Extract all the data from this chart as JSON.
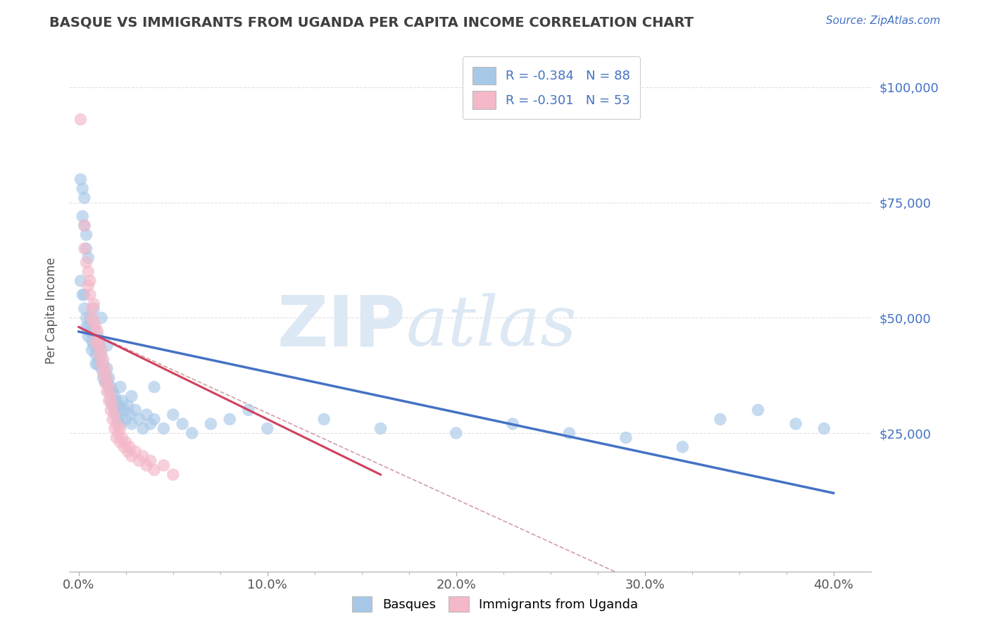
{
  "title": "BASQUE VS IMMIGRANTS FROM UGANDA PER CAPITA INCOME CORRELATION CHART",
  "source": "Source: ZipAtlas.com",
  "ylabel": "Per Capita Income",
  "xlabel_ticks": [
    "0.0%",
    "10.0%",
    "20.0%",
    "30.0%",
    "40.0%"
  ],
  "xlabel_vals": [
    0.0,
    0.1,
    0.2,
    0.3,
    0.4
  ],
  "ylabel_ticks": [
    "$100,000",
    "$75,000",
    "$50,000",
    "$25,000"
  ],
  "ylabel_vals": [
    100000,
    75000,
    50000,
    25000
  ],
  "ylim": [
    -5000,
    108000
  ],
  "xlim": [
    -0.005,
    0.42
  ],
  "legend_label1": "Basques",
  "legend_label2": "Immigrants from Uganda",
  "R1": -0.384,
  "N1": 88,
  "R2": -0.301,
  "N2": 53,
  "color_blue": "#a8c8e8",
  "color_pink": "#f4b8c8",
  "line_color_blue": "#4472c4",
  "line_color_pink": "#d04060",
  "trend_color_gray": "#d0a0a8",
  "title_color": "#404040",
  "source_color": "#4472c4",
  "watermark_color": "#dce8f4",
  "background_color": "#ffffff",
  "grid_color": "#e0e0e0",
  "blue_scatter": [
    [
      0.001,
      80000
    ],
    [
      0.002,
      78000
    ],
    [
      0.002,
      72000
    ],
    [
      0.003,
      76000
    ],
    [
      0.003,
      70000
    ],
    [
      0.004,
      68000
    ],
    [
      0.004,
      65000
    ],
    [
      0.005,
      63000
    ],
    [
      0.001,
      58000
    ],
    [
      0.002,
      55000
    ],
    [
      0.003,
      55000
    ],
    [
      0.003,
      52000
    ],
    [
      0.004,
      50000
    ],
    [
      0.004,
      48000
    ],
    [
      0.005,
      48000
    ],
    [
      0.005,
      46000
    ],
    [
      0.006,
      50000
    ],
    [
      0.006,
      47000
    ],
    [
      0.007,
      45000
    ],
    [
      0.007,
      43000
    ],
    [
      0.008,
      48000
    ],
    [
      0.008,
      44000
    ],
    [
      0.009,
      42000
    ],
    [
      0.009,
      40000
    ],
    [
      0.01,
      46000
    ],
    [
      0.01,
      43000
    ],
    [
      0.01,
      40000
    ],
    [
      0.011,
      44000
    ],
    [
      0.011,
      41000
    ],
    [
      0.012,
      42000
    ],
    [
      0.012,
      39000
    ],
    [
      0.013,
      40000
    ],
    [
      0.013,
      37000
    ],
    [
      0.014,
      38000
    ],
    [
      0.014,
      36000
    ],
    [
      0.015,
      39000
    ],
    [
      0.015,
      36000
    ],
    [
      0.016,
      37000
    ],
    [
      0.016,
      34000
    ],
    [
      0.017,
      35000
    ],
    [
      0.017,
      32000
    ],
    [
      0.018,
      34000
    ],
    [
      0.018,
      31000
    ],
    [
      0.019,
      33000
    ],
    [
      0.019,
      30000
    ],
    [
      0.02,
      32000
    ],
    [
      0.02,
      29000
    ],
    [
      0.021,
      31000
    ],
    [
      0.021,
      28000
    ],
    [
      0.022,
      30000
    ],
    [
      0.022,
      27000
    ],
    [
      0.023,
      32000
    ],
    [
      0.024,
      30000
    ],
    [
      0.025,
      28000
    ],
    [
      0.026,
      31000
    ],
    [
      0.027,
      29000
    ],
    [
      0.028,
      27000
    ],
    [
      0.03,
      30000
    ],
    [
      0.032,
      28000
    ],
    [
      0.034,
      26000
    ],
    [
      0.036,
      29000
    ],
    [
      0.038,
      27000
    ],
    [
      0.04,
      28000
    ],
    [
      0.045,
      26000
    ],
    [
      0.05,
      29000
    ],
    [
      0.055,
      27000
    ],
    [
      0.06,
      25000
    ],
    [
      0.07,
      27000
    ],
    [
      0.08,
      28000
    ],
    [
      0.09,
      30000
    ],
    [
      0.1,
      26000
    ],
    [
      0.13,
      28000
    ],
    [
      0.16,
      26000
    ],
    [
      0.2,
      25000
    ],
    [
      0.23,
      27000
    ],
    [
      0.26,
      25000
    ],
    [
      0.29,
      24000
    ],
    [
      0.32,
      22000
    ],
    [
      0.34,
      28000
    ],
    [
      0.36,
      30000
    ],
    [
      0.38,
      27000
    ],
    [
      0.395,
      26000
    ],
    [
      0.012,
      50000
    ],
    [
      0.008,
      52000
    ],
    [
      0.015,
      44000
    ],
    [
      0.022,
      35000
    ],
    [
      0.028,
      33000
    ],
    [
      0.04,
      35000
    ]
  ],
  "pink_scatter": [
    [
      0.001,
      93000
    ],
    [
      0.003,
      70000
    ],
    [
      0.003,
      65000
    ],
    [
      0.004,
      62000
    ],
    [
      0.005,
      60000
    ],
    [
      0.005,
      57000
    ],
    [
      0.006,
      58000
    ],
    [
      0.006,
      55000
    ],
    [
      0.007,
      52000
    ],
    [
      0.007,
      50000
    ],
    [
      0.008,
      53000
    ],
    [
      0.008,
      49000
    ],
    [
      0.009,
      48000
    ],
    [
      0.009,
      45000
    ],
    [
      0.01,
      47000
    ],
    [
      0.01,
      44000
    ],
    [
      0.011,
      45000
    ],
    [
      0.011,
      42000
    ],
    [
      0.012,
      43000
    ],
    [
      0.012,
      40000
    ],
    [
      0.013,
      41000
    ],
    [
      0.013,
      38000
    ],
    [
      0.014,
      39000
    ],
    [
      0.014,
      36000
    ],
    [
      0.015,
      37000
    ],
    [
      0.015,
      34000
    ],
    [
      0.016,
      35000
    ],
    [
      0.016,
      32000
    ],
    [
      0.017,
      33000
    ],
    [
      0.017,
      30000
    ],
    [
      0.018,
      31000
    ],
    [
      0.018,
      28000
    ],
    [
      0.019,
      29000
    ],
    [
      0.019,
      26000
    ],
    [
      0.02,
      27000
    ],
    [
      0.02,
      24000
    ],
    [
      0.021,
      25000
    ],
    [
      0.022,
      26000
    ],
    [
      0.022,
      23000
    ],
    [
      0.023,
      24000
    ],
    [
      0.024,
      22000
    ],
    [
      0.025,
      23000
    ],
    [
      0.026,
      21000
    ],
    [
      0.027,
      22000
    ],
    [
      0.028,
      20000
    ],
    [
      0.03,
      21000
    ],
    [
      0.032,
      19000
    ],
    [
      0.034,
      20000
    ],
    [
      0.036,
      18000
    ],
    [
      0.038,
      19000
    ],
    [
      0.04,
      17000
    ],
    [
      0.045,
      18000
    ],
    [
      0.05,
      16000
    ]
  ],
  "blue_line_x": [
    0.0,
    0.4
  ],
  "blue_line_y": [
    47000,
    12000
  ],
  "pink_line_x": [
    0.0,
    0.16
  ],
  "pink_line_y": [
    48000,
    16000
  ],
  "gray_line_x": [
    0.0,
    0.3
  ],
  "gray_line_y": [
    48000,
    -8000
  ]
}
